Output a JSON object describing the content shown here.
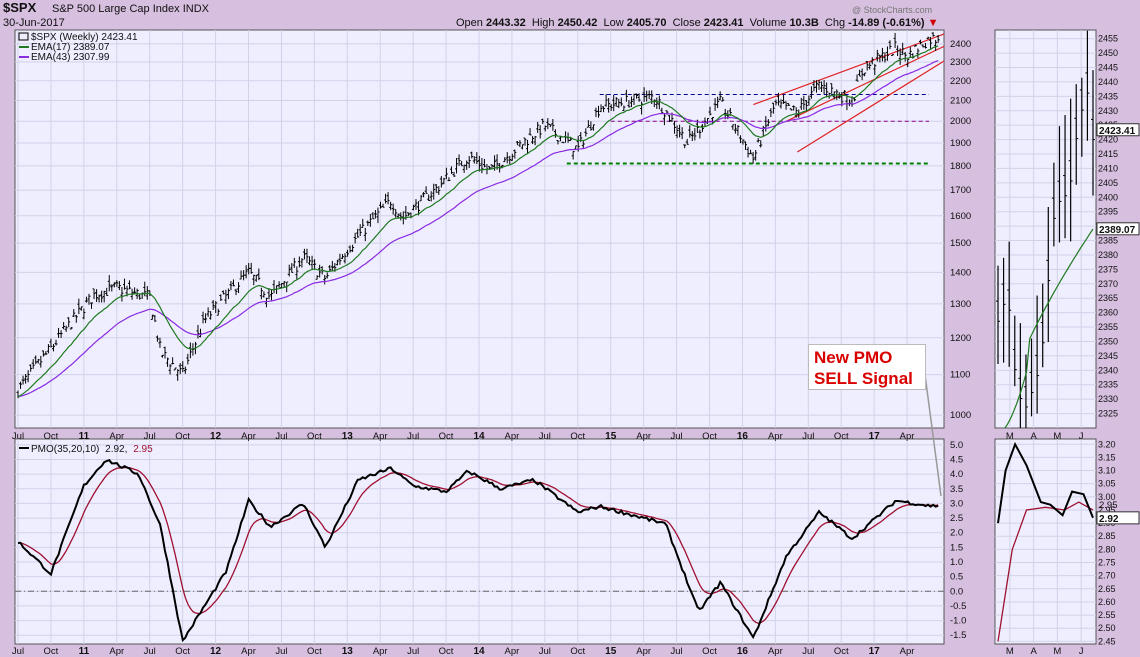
{
  "header": {
    "symbol": "$SPX",
    "name": "S&P 500 Large Cap Index",
    "exchange": "INDX",
    "date": "30-Jun-2017",
    "watermark": "@ StockCharts.com",
    "open_label": "Open",
    "open": "2443.32",
    "high_label": "High",
    "high": "2450.42",
    "low_label": "Low",
    "low": "2405.70",
    "close_label": "Close",
    "close": "2423.41",
    "volume_label": "Volume",
    "volume": "10.3B",
    "chg_label": "Chg",
    "chg": "-14.89 (-0.61%)"
  },
  "legend": {
    "price": "$SPX (Weekly) 2423.41",
    "ema17": "EMA(17) 2389.07",
    "ema43": "EMA(43) 2307.99",
    "pmo_label": "PMO(35,20,10)",
    "pmo_value": "2.92",
    "pmo_signal": "2.95"
  },
  "annotation": {
    "line1": "New PMO",
    "line2": "SELL Signal"
  },
  "colors": {
    "background": "#d6bfdf",
    "panel": "#eeeeff",
    "grid": "#d0d2e8",
    "price_bars": "#000000",
    "ema17": "#1f7a1f",
    "ema43": "#8a2be2",
    "trend_channel": "#e02020",
    "resistance": "#00008b",
    "support_1800": "#008000",
    "support_2000": "#8b008b",
    "pmo": "#000000",
    "pmo_signal": "#a01030",
    "annotation_text": "#d90000"
  },
  "x_axis": {
    "labels": [
      "Jul",
      "Oct",
      "11",
      "Apr",
      "Jul",
      "Oct",
      "12",
      "Apr",
      "Jul",
      "Oct",
      "13",
      "Apr",
      "Jul",
      "Oct",
      "14",
      "Apr",
      "Jul",
      "Oct",
      "15",
      "Apr",
      "Jul",
      "Oct",
      "16",
      "Apr",
      "Jul",
      "Oct",
      "17",
      "Apr"
    ],
    "bold_labels": [
      "11",
      "12",
      "13",
      "14",
      "15",
      "16",
      "17"
    ]
  },
  "price_axis": {
    "ticks": [
      "2400",
      "2300",
      "2200",
      "2100",
      "2000",
      "1900",
      "1800",
      "1700",
      "1600",
      "1500",
      "1400",
      "1300",
      "1200",
      "1100",
      "1000"
    ],
    "last_label": "2423.41"
  },
  "pmo_axis": {
    "ticks": [
      "5.0",
      "4.5",
      "4.0",
      "3.5",
      "3.0",
      "2.5",
      "2.0",
      "1.5",
      "1.0",
      "0.5",
      "0.0",
      "-0.5",
      "-1.0",
      "-1.5"
    ]
  },
  "zoom": {
    "x_labels": [
      "M",
      "A",
      "M",
      "J"
    ],
    "price_ticks": [
      "2455",
      "2450",
      "2445",
      "2440",
      "2435",
      "2430",
      "2425",
      "2420",
      "2415",
      "2410",
      "2405",
      "2400",
      "2395",
      "2390",
      "2385",
      "2380",
      "2375",
      "2370",
      "2365",
      "2360",
      "2355",
      "2350",
      "2345",
      "2340",
      "2335",
      "2330",
      "2325"
    ],
    "last_label": "2423.41",
    "ema_label": "2389.07",
    "pmo_ticks": [
      "3.20",
      "3.15",
      "3.10",
      "3.05",
      "3.00",
      "2.95",
      "2.90",
      "2.85",
      "2.80",
      "2.75",
      "2.70",
      "2.65",
      "2.60",
      "2.55",
      "2.50",
      "2.45"
    ],
    "pmo_label": "2.92",
    "pmo_signal_label": "2.95"
  },
  "chart_data": {
    "type": "bar",
    "title": "$SPX S&P 500 Large Cap Index INDX",
    "period": "Weekly",
    "x_range": [
      "Jul 2010",
      "Jun 2017"
    ],
    "price_range": [
      970,
      2480
    ],
    "scale": "log",
    "price_waypoints": [
      [
        "2010-07",
        1060
      ],
      [
        "2010-10",
        1170
      ],
      [
        "2011-02",
        1330
      ],
      [
        "2011-04",
        1350
      ],
      [
        "2011-07",
        1320
      ],
      [
        "2011-08",
        1160
      ],
      [
        "2011-10",
        1100
      ],
      [
        "2011-12",
        1250
      ],
      [
        "2012-04",
        1400
      ],
      [
        "2012-06",
        1320
      ],
      [
        "2012-09",
        1450
      ],
      [
        "2012-11",
        1380
      ],
      [
        "2013-01",
        1480
      ],
      [
        "2013-05",
        1660
      ],
      [
        "2013-06",
        1590
      ],
      [
        "2013-09",
        1700
      ],
      [
        "2013-12",
        1840
      ],
      [
        "2014-02",
        1780
      ],
      [
        "2014-07",
        1980
      ],
      [
        "2014-10",
        1870
      ],
      [
        "2014-12",
        2070
      ],
      [
        "2015-05",
        2120
      ],
      [
        "2015-08",
        1900
      ],
      [
        "2015-11",
        2090
      ],
      [
        "2016-02",
        1830
      ],
      [
        "2016-04",
        2080
      ],
      [
        "2016-06",
        2040
      ],
      [
        "2016-08",
        2180
      ],
      [
        "2016-11",
        2100
      ],
      [
        "2016-12",
        2260
      ],
      [
        "2017-03",
        2380
      ],
      [
        "2017-04",
        2330
      ],
      [
        "2017-06",
        2430
      ]
    ],
    "series": [
      {
        "name": "EMA(17)",
        "last": 2389.07
      },
      {
        "name": "EMA(43)",
        "last": 2307.99
      }
    ],
    "horizontal_lines": [
      2130,
      2000,
      1810
    ],
    "pmo": {
      "name": "PMO(35,20,10)",
      "y_range": [
        -1.8,
        5.2
      ],
      "waypoints": [
        [
          "2010-07",
          1.7
        ],
        [
          "2010-10",
          0.6
        ],
        [
          "2011-01",
          3.6
        ],
        [
          "2011-03",
          4.5
        ],
        [
          "2011-06",
          4.0
        ],
        [
          "2011-08",
          2.2
        ],
        [
          "2011-10",
          -1.7
        ],
        [
          "2012-02",
          0.7
        ],
        [
          "2012-04",
          3.1
        ],
        [
          "2012-06",
          2.2
        ],
        [
          "2012-09",
          3.0
        ],
        [
          "2012-11",
          1.5
        ],
        [
          "2013-02",
          3.8
        ],
        [
          "2013-05",
          4.2
        ],
        [
          "2013-07",
          3.6
        ],
        [
          "2013-10",
          3.4
        ],
        [
          "2013-12",
          4.1
        ],
        [
          "2014-03",
          3.5
        ],
        [
          "2014-06",
          3.8
        ],
        [
          "2014-10",
          2.7
        ],
        [
          "2014-12",
          2.9
        ],
        [
          "2015-06",
          2.3
        ],
        [
          "2015-09",
          -0.7
        ],
        [
          "2015-11",
          0.3
        ],
        [
          "2016-02",
          -1.6
        ],
        [
          "2016-05",
          1.2
        ],
        [
          "2016-08",
          2.7
        ],
        [
          "2016-11",
          1.8
        ],
        [
          "2017-03",
          3.1
        ],
        [
          "2017-06",
          2.92
        ]
      ],
      "signal_last": 2.95
    }
  }
}
